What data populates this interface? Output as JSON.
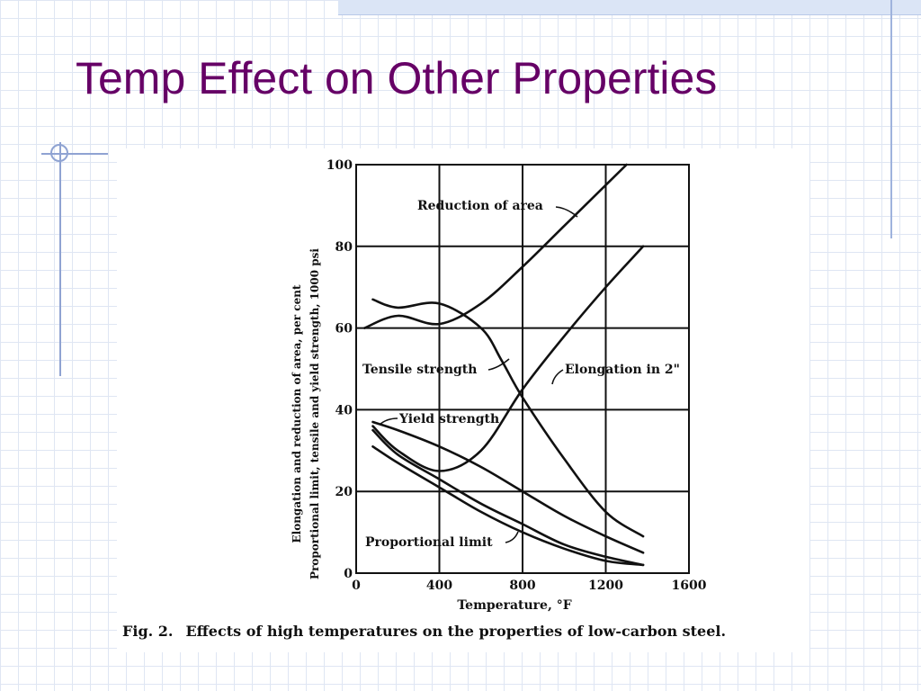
{
  "slide": {
    "title": "Temp Effect on Other Properties",
    "title_color": "#660066",
    "accent_color": "#8fa3d2"
  },
  "figure": {
    "caption_label": "Fig. 2.",
    "caption_text": "Effects of high temperatures on the properties of low-carbon steel."
  },
  "chart_data": {
    "type": "line",
    "xlabel": "Temperature, °F",
    "ylabel_outer": "Elongation and reduction of area, per cent",
    "ylabel_inner": "Proportional limit, tensile and yield strength, 1000 psi",
    "xlim": [
      0,
      1600
    ],
    "ylim": [
      0,
      100
    ],
    "xticks": [
      0,
      400,
      800,
      1200,
      1600
    ],
    "yticks": [
      0,
      20,
      40,
      60,
      80,
      100
    ],
    "grid": true,
    "series": [
      {
        "name": "Reduction of area",
        "x": [
          40,
          200,
          400,
          600,
          800,
          1000,
          1200,
          1300
        ],
        "y": [
          60,
          63,
          61,
          66,
          75,
          85,
          95,
          100
        ]
      },
      {
        "name": "Tensile strength",
        "x": [
          80,
          200,
          400,
          600,
          700,
          800,
          1000,
          1200,
          1380
        ],
        "y": [
          67,
          65,
          66,
          60,
          52,
          43,
          28,
          15,
          9
        ]
      },
      {
        "name": "Elongation in 2\"",
        "x": [
          80,
          200,
          400,
          600,
          800,
          1000,
          1200,
          1380
        ],
        "y": [
          36,
          30,
          25,
          30,
          45,
          58,
          70,
          80
        ]
      },
      {
        "name": "Yield strength",
        "x": [
          80,
          200,
          400,
          600,
          800,
          1000,
          1200,
          1380
        ],
        "y": [
          37,
          35,
          31,
          26,
          20,
          14,
          9,
          5
        ]
      },
      {
        "name": "Proportional limit",
        "x": [
          80,
          200,
          400,
          600,
          800,
          1000,
          1200,
          1380
        ],
        "y": [
          31,
          27,
          21,
          15,
          10,
          6,
          3,
          2
        ]
      },
      {
        "name": "",
        "x": [
          80,
          200,
          400,
          600,
          800,
          1000,
          1200,
          1380
        ],
        "y": [
          35,
          29,
          23,
          17,
          12,
          7,
          4,
          2
        ]
      }
    ]
  }
}
